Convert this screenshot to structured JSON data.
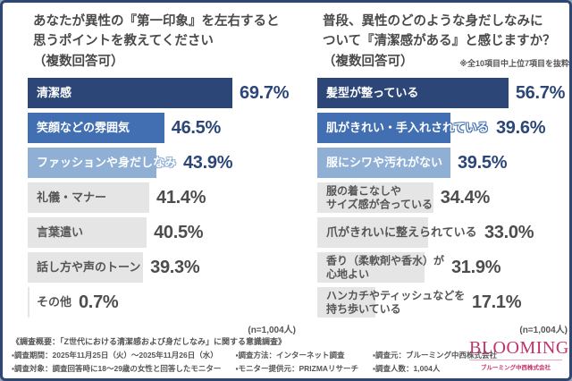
{
  "colors": {
    "frame_border": "#2e4673",
    "bar_rank1": "#2c4677",
    "bar_rank2": "#426fb2",
    "bar_rank3": "#8fafd5",
    "bar_gray": "#e5e5e5",
    "percent_navy": "#2b4677",
    "percent_gray": "#4d4d4d",
    "logo_pink": "#c2326b"
  },
  "chart_data": [
    {
      "type": "bar",
      "orientation": "horizontal",
      "title": "あなたが異性の『第一印象』を左右すると思うポイントを教えてください（複数回答可）",
      "title_lines": [
        "あなたが異性の『第一印象』を左右すると",
        "思うポイントを教えてください"
      ],
      "multi_answer_note": "（複数回答可）",
      "excerpt_note": "",
      "xlim": [
        0,
        70
      ],
      "categories": [
        "清潔感",
        "笑顔などの雰囲気",
        "ファッションや身だしなみ",
        "礼儀・マナー",
        "言葉遣い",
        "話し方や声のトーン",
        "その他"
      ],
      "values": [
        69.7,
        46.5,
        43.9,
        41.4,
        40.5,
        39.3,
        0.7
      ],
      "labels": [
        "69.7%",
        "46.5%",
        "43.9%",
        "41.4%",
        "40.5%",
        "39.3%",
        "0.7%"
      ],
      "n_label": "(n=1,004人)"
    },
    {
      "type": "bar",
      "orientation": "horizontal",
      "title": "普段、異性のどのような身だしなみについて『清潔感がある』と感じますか？（複数回答可）",
      "title_lines": [
        "普段、異性のどのような身だしなみに",
        "ついて『清潔感がある』と感じますか？"
      ],
      "multi_answer_note": "（複数回答可）",
      "excerpt_note": "※全10項目中上位7項目を抜粋",
      "xlim": [
        0,
        57
      ],
      "categories": [
        "髪型が整っている",
        "肌がきれい・手入れされている",
        "服にシワや汚れがない",
        "服の着こなしや\nサイズ感が合っている",
        "爪がきれいに整えられている",
        "香り（柔軟剤や香水）が\n心地よい",
        "ハンカチやティッシュなどを\n持ち歩いている"
      ],
      "values": [
        56.7,
        39.6,
        39.5,
        34.4,
        33.0,
        31.9,
        17.1
      ],
      "labels": [
        "56.7%",
        "39.6%",
        "39.5%",
        "34.4%",
        "33.0%",
        "31.9%",
        "17.1%"
      ],
      "n_label": "(n=1,004人)"
    }
  ],
  "footer": {
    "heading": "《調査概要：「Z世代における清潔感および身だしなみ」に関する意識調査》",
    "col1": [
      "▪調査期間：2025年11月25日（火）～2025年11月26日（水）",
      "▪調査対象：調査回答時に18～29歳の女性と回答したモニター"
    ],
    "col2": [
      "▪調査方法：インターネット調査",
      "▪モニター提供元：PRIZMAリサーチ"
    ],
    "col3": [
      "▪調査元：ブルーミング中西株式会社",
      "▪調査人数：1,004人"
    ]
  },
  "logo": {
    "name": "BLOOMING",
    "subtitle": "ブルーミング中西株式会社"
  }
}
